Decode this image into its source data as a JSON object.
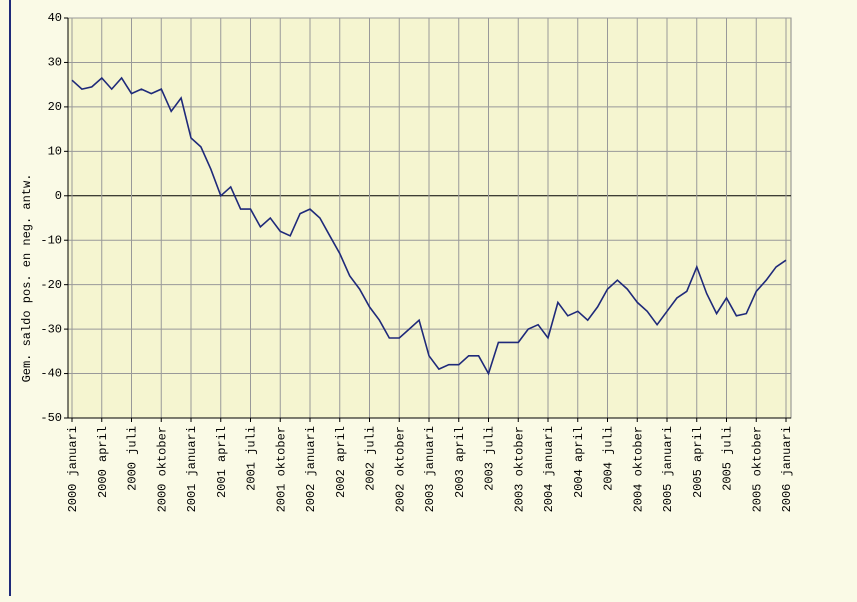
{
  "chart_data": {
    "type": "line",
    "y_label": "Gem. saldo pos. en neg. antw.",
    "categories": [
      "2000 januari",
      null,
      null,
      "2000 april",
      null,
      null,
      "2000 juli",
      null,
      null,
      "2000 oktober",
      null,
      null,
      "2001 januari",
      null,
      null,
      "2001 april",
      null,
      null,
      "2001 juli",
      null,
      null,
      "2001 oktober",
      null,
      null,
      "2002 januari",
      null,
      null,
      "2002 april",
      null,
      null,
      "2002 juli",
      null,
      null,
      "2002 oktober",
      null,
      null,
      "2003 januari",
      null,
      null,
      "2003 april",
      null,
      null,
      "2003 juli",
      null,
      null,
      "2003 oktober",
      null,
      null,
      "2004 januari",
      null,
      null,
      "2004 april",
      null,
      null,
      "2004 juli",
      null,
      null,
      "2004 oktober",
      null,
      null,
      "2005 januari",
      null,
      null,
      "2005 april",
      null,
      null,
      "2005 juli",
      null,
      null,
      "2005 oktober",
      null,
      null,
      "2006 januari"
    ],
    "series": [
      {
        "color": "#1f2a7a",
        "values": [
          26,
          24,
          24.5,
          26.5,
          24,
          26.5,
          23,
          24,
          23,
          24,
          19,
          22,
          13,
          11,
          6,
          0,
          2,
          -3,
          -3,
          -7,
          -5,
          -8,
          -9,
          -4,
          -3,
          -5,
          -9,
          -13,
          -18,
          -21,
          -25,
          -28,
          -32,
          -32,
          -30,
          -28,
          -36,
          -39,
          -38,
          -38,
          -36,
          -36,
          -40,
          -33,
          -33,
          -33,
          -30,
          -29,
          -32,
          -24,
          -27,
          -26,
          -28,
          -25,
          -21,
          -19,
          -21,
          -24,
          -26,
          -29,
          -26,
          -23,
          -21.5,
          -16,
          -22,
          -26.5,
          -23,
          -27,
          -26.5,
          -21.5,
          -19,
          -16,
          -14.5
        ]
      }
    ],
    "ylim": [
      -50,
      40
    ],
    "yticks": [
      -50,
      -40,
      -30,
      -20,
      -10,
      0,
      10,
      20,
      30,
      40
    ],
    "grid": true
  }
}
